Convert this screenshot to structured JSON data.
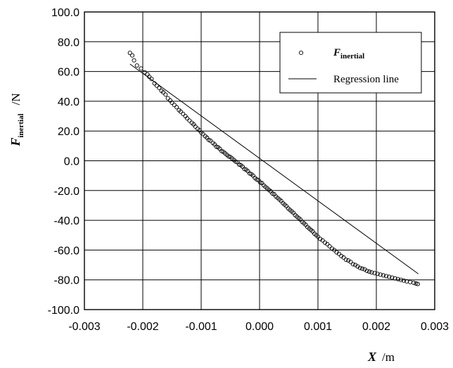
{
  "chart_data": {
    "type": "scatter",
    "xlabel": "X",
    "xunit": "/m",
    "ylabel_main": "F",
    "ylabel_sub": "inertial",
    "yunit": "/N",
    "xlim": [
      -0.003,
      0.003
    ],
    "ylim": [
      -100.0,
      100.0
    ],
    "x_ticks": [
      "-0.003",
      "-0.002",
      "-0.001",
      "0.000",
      "0.001",
      "0.002",
      "0.003"
    ],
    "y_ticks": [
      "100.0",
      "80.0",
      "60.0",
      "40.0",
      "20.0",
      "0.0",
      "-20.0",
      "-40.0",
      "-60.0",
      "-80.0",
      "-100.0"
    ],
    "grid": true,
    "legend_position": "top-right",
    "series": [
      {
        "name_main": "F",
        "name_sub": "inertial",
        "kind": "scatter",
        "marker": "open-circle",
        "color": "#000000",
        "x": [
          -0.00222,
          -0.00218,
          -0.00215,
          -0.0021,
          -0.00203,
          -0.00197,
          -0.00192,
          -0.00189,
          -0.00185,
          -0.0018,
          -0.00176,
          -0.00172,
          -0.00168,
          -0.00165,
          -0.00161,
          -0.00157,
          -0.00153,
          -0.0015,
          -0.00146,
          -0.00142,
          -0.00138,
          -0.00135,
          -0.00131,
          -0.00127,
          -0.00124,
          -0.0012,
          -0.00116,
          -0.00113,
          -0.0011,
          -0.00106,
          -0.00103,
          -0.001,
          -0.00097,
          -0.00093,
          -0.0009,
          -0.00087,
          -0.00084,
          -0.0008,
          -0.00077,
          -0.00074,
          -0.00071,
          -0.00068,
          -0.00065,
          -0.00062,
          -0.00059,
          -0.00056,
          -0.00053,
          -0.0005,
          -0.00047,
          -0.00044,
          -0.00041,
          -0.00038,
          -0.00035,
          -0.00032,
          -0.00029,
          -0.00026,
          -0.00023,
          -0.0002,
          -0.00017,
          -0.00014,
          -0.00011,
          -8e-05,
          -5e-05,
          -2e-05,
          1e-05,
          4e-05,
          7e-05,
          0.0001,
          0.00013,
          0.00016,
          0.00019,
          0.00022,
          0.00025,
          0.00028,
          0.00031,
          0.00034,
          0.00037,
          0.0004,
          0.00043,
          0.00046,
          0.00049,
          0.00052,
          0.00055,
          0.00058,
          0.00061,
          0.00064,
          0.00067,
          0.0007,
          0.00073,
          0.00076,
          0.00079,
          0.00082,
          0.00085,
          0.00088,
          0.00091,
          0.00094,
          0.00097,
          0.001,
          0.00104,
          0.00108,
          0.00112,
          0.00116,
          0.0012,
          0.00124,
          0.00128,
          0.00132,
          0.00136,
          0.0014,
          0.00144,
          0.00148,
          0.00152,
          0.00156,
          0.0016,
          0.00164,
          0.00168,
          0.00172,
          0.00176,
          0.0018,
          0.00184,
          0.00188,
          0.00192,
          0.00197,
          0.00202,
          0.00207,
          0.00212,
          0.00217,
          0.00222,
          0.00227,
          0.00232,
          0.00237,
          0.00242,
          0.00247,
          0.00252,
          0.00258,
          0.00264,
          0.00268,
          0.00271
        ],
        "y": [
          72.5,
          70.8,
          67.5,
          64.0,
          62.0,
          59.5,
          58.0,
          56.5,
          55.0,
          52.0,
          50.5,
          49.0,
          47.0,
          46.0,
          44.5,
          42.0,
          40.5,
          39.0,
          37.5,
          36.0,
          34.0,
          33.0,
          31.5,
          30.0,
          28.5,
          27.0,
          25.5,
          24.5,
          23.0,
          21.5,
          20.5,
          19.0,
          18.0,
          16.5,
          15.5,
          14.0,
          13.5,
          12.0,
          11.0,
          9.5,
          9.0,
          8.0,
          6.5,
          6.0,
          5.0,
          4.0,
          3.0,
          2.5,
          1.5,
          0.5,
          -0.5,
          -1.0,
          -2.5,
          -3.0,
          -4.0,
          -5.5,
          -6.0,
          -7.0,
          -8.5,
          -9.0,
          -10.0,
          -11.5,
          -12.5,
          -13.0,
          -14.5,
          -15.0,
          -16.5,
          -17.5,
          -18.5,
          -19.5,
          -20.5,
          -22.0,
          -22.5,
          -24.0,
          -25.0,
          -26.0,
          -27.0,
          -28.5,
          -29.5,
          -30.5,
          -32.0,
          -33.0,
          -34.0,
          -35.0,
          -36.5,
          -37.5,
          -38.5,
          -39.5,
          -41.0,
          -42.0,
          -43.0,
          -44.5,
          -45.5,
          -46.5,
          -47.5,
          -49.0,
          -50.0,
          -51.0,
          -52.5,
          -53.5,
          -55.0,
          -56.0,
          -57.5,
          -59.0,
          -60.0,
          -61.5,
          -62.5,
          -64.0,
          -65.0,
          -66.5,
          -67.0,
          -68.0,
          -69.5,
          -70.0,
          -71.0,
          -72.0,
          -72.5,
          -73.0,
          -74.0,
          -74.5,
          -75.0,
          -75.5,
          -76.0,
          -76.5,
          -77.0,
          -77.5,
          -78.0,
          -78.5,
          -79.0,
          -79.5,
          -80.0,
          -80.5,
          -81.0,
          -81.5,
          -82.0,
          -82.5,
          -82.8
        ]
      },
      {
        "name": "Regression line",
        "kind": "line",
        "color": "#000000",
        "x": [
          -0.00222,
          0.00272
        ],
        "y": [
          65.0,
          -76.0
        ]
      }
    ]
  }
}
